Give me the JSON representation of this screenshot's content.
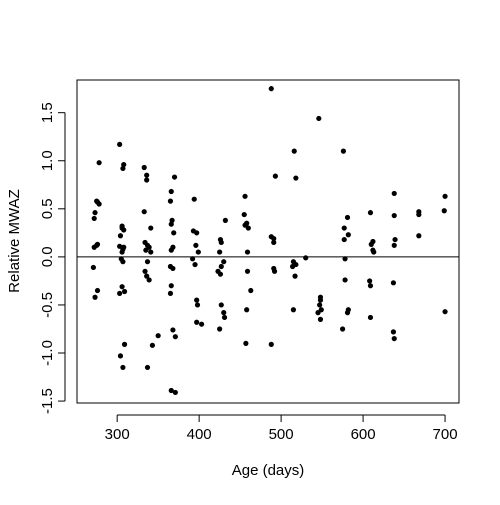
{
  "chart_data": {
    "type": "scatter",
    "x_label": "Age (days)",
    "y_label": "Relative MWAZ",
    "x": [
      272,
      273,
      275,
      276,
      278,
      272,
      276,
      271,
      273,
      276,
      278,
      275,
      303,
      307,
      308,
      306,
      308,
      304,
      303,
      307,
      306,
      308,
      305,
      307,
      306,
      303,
      309,
      309,
      304,
      307,
      306,
      333,
      336,
      336,
      333,
      341,
      334,
      337,
      339,
      335,
      341,
      337,
      334,
      336,
      339,
      337,
      343,
      350,
      370,
      366,
      365,
      367,
      366,
      369,
      368,
      366,
      365,
      368,
      366,
      365,
      368,
      371,
      366,
      371,
      394,
      393,
      397,
      396,
      399,
      392,
      395,
      397,
      398,
      397,
      403,
      432,
      426,
      427,
      425,
      430,
      427,
      423,
      426,
      427,
      430,
      425,
      431,
      456,
      455,
      458,
      460,
      456,
      459,
      459,
      463,
      458,
      457,
      488,
      493,
      488,
      491,
      491,
      491,
      492,
      488,
      516,
      518,
      515,
      518,
      514,
      517,
      515,
      530,
      546,
      548,
      548,
      547,
      549,
      545,
      548,
      576,
      581,
      577,
      582,
      577,
      578,
      578,
      582,
      581,
      575,
      609,
      612,
      610,
      612,
      613,
      608,
      609,
      609,
      638,
      638,
      639,
      638,
      637,
      637,
      638,
      668,
      668,
      668,
      700,
      699,
      700
    ],
    "values": [
      0.4,
      0.46,
      0.58,
      0.57,
      0.55,
      0.1,
      0.13,
      -0.11,
      -0.42,
      -0.35,
      0.98,
      0.12,
      1.17,
      0.92,
      0.96,
      0.3,
      0.28,
      0.22,
      0.11,
      0.08,
      0.05,
      0.1,
      -0.02,
      -0.05,
      -0.31,
      -0.38,
      -0.36,
      -0.91,
      -1.03,
      -1.15,
      0.32,
      0.93,
      0.85,
      0.8,
      0.47,
      0.3,
      0.15,
      0.12,
      0.1,
      0.07,
      0.05,
      -0.05,
      -0.15,
      -0.2,
      -0.24,
      -1.15,
      -0.92,
      -0.82,
      0.83,
      0.68,
      0.58,
      0.38,
      0.34,
      0.25,
      0.1,
      0.07,
      -0.1,
      -0.12,
      -0.3,
      -0.38,
      -0.76,
      -0.83,
      -1.39,
      -1.41,
      0.6,
      0.27,
      0.25,
      0.12,
      0.05,
      -0.02,
      -0.08,
      -0.45,
      -0.5,
      -0.68,
      -0.7,
      0.38,
      0.18,
      0.15,
      0.05,
      -0.05,
      -0.1,
      -0.15,
      -0.18,
      -0.5,
      -0.58,
      -0.75,
      -0.63,
      0.63,
      0.44,
      0.35,
      0.3,
      0.33,
      0.05,
      -0.15,
      -0.35,
      -0.55,
      -0.9,
      1.75,
      0.84,
      0.21,
      0.19,
      0.15,
      -0.12,
      -0.15,
      -0.91,
      1.1,
      0.82,
      -0.05,
      -0.08,
      -0.1,
      -0.2,
      -0.55,
      -0.01,
      1.44,
      -0.42,
      -0.45,
      -0.5,
      -0.55,
      -0.58,
      -0.65,
      1.1,
      0.41,
      0.3,
      0.23,
      0.18,
      -0.02,
      -0.24,
      -0.55,
      -0.58,
      -0.75,
      0.46,
      0.16,
      0.13,
      0.07,
      0.05,
      -0.25,
      -0.3,
      -0.63,
      0.66,
      0.43,
      0.18,
      0.12,
      -0.27,
      -0.78,
      -0.85,
      0.47,
      0.44,
      0.22,
      0.63,
      0.48,
      -0.57
    ],
    "color": "#000000",
    "hline": 0,
    "xlim": [
      251,
      717
    ],
    "ylim": [
      -1.52,
      1.84
    ],
    "xticks": [
      300,
      400,
      500,
      600,
      700
    ],
    "yticks": [
      -1.5,
      {
        "value": -1.0,
        "label": "-1.0"
      },
      -0.5,
      {
        "value": 0.0,
        "label": "0.0"
      },
      0.5,
      {
        "value": 1.0,
        "label": "1.0"
      },
      1.5
    ]
  }
}
